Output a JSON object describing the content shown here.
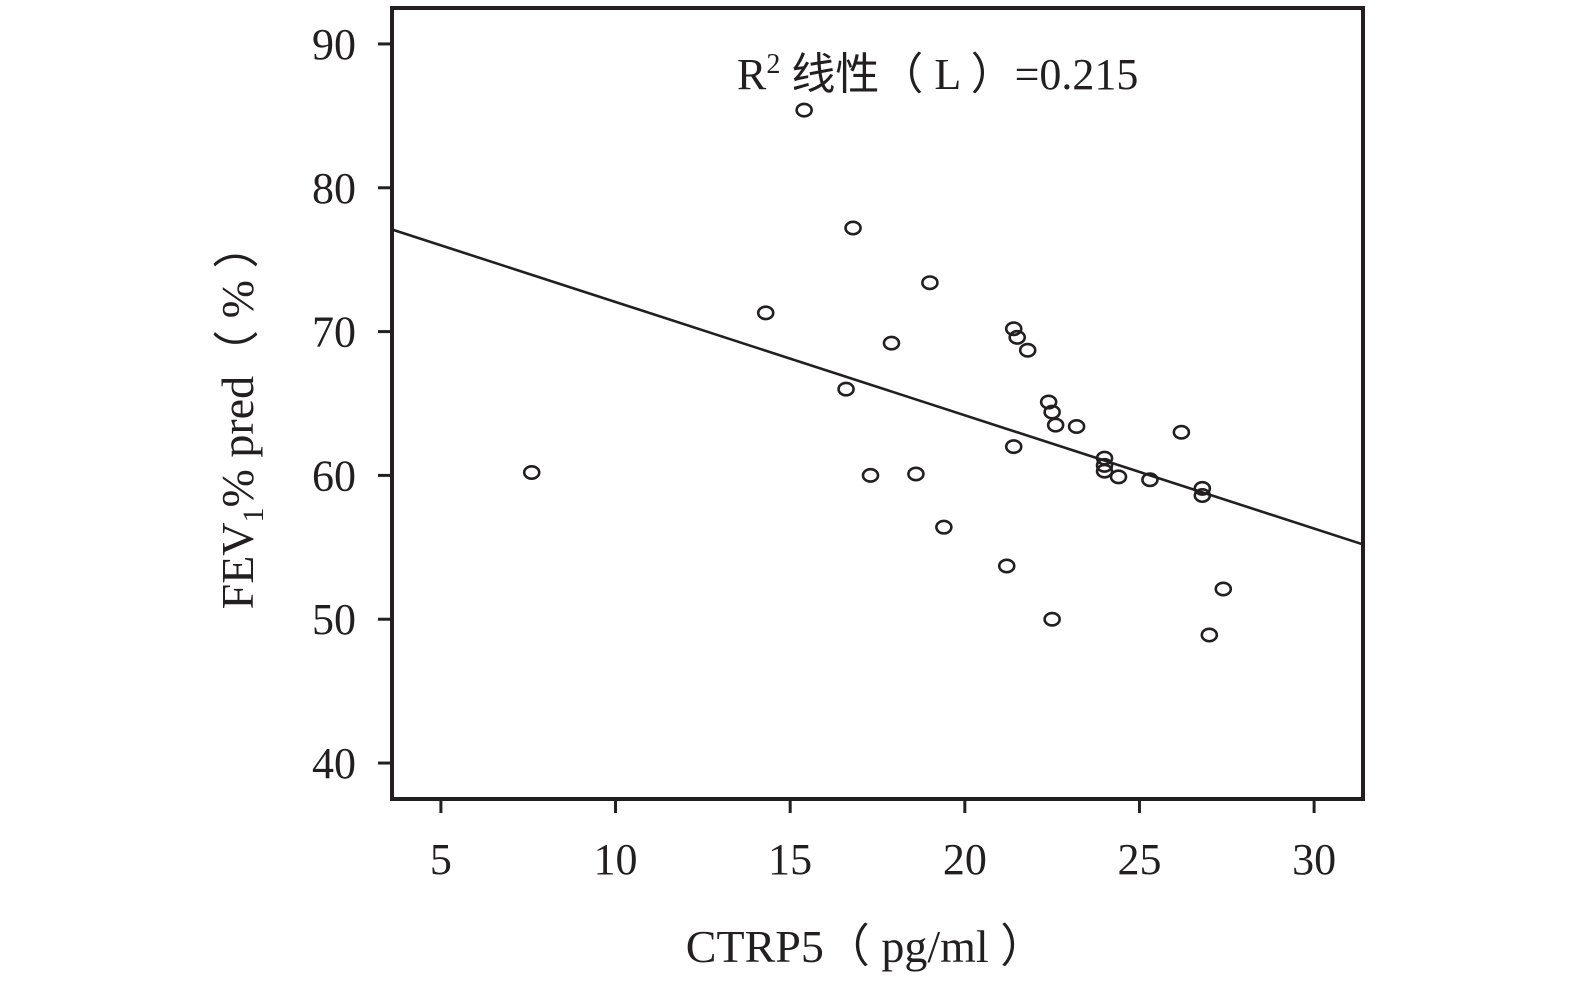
{
  "chart_data": {
    "type": "scatter",
    "title": "",
    "annotation": {
      "prefix": "R",
      "sup": "2",
      "text": " 线性（ L ）=0.215"
    },
    "xlabel": "CTRP5（ pg/ml ）",
    "ylabel": {
      "prefix": "FEV",
      "sub": "1",
      "text": "% pred（ % ）"
    },
    "xlim": [
      3.6,
      31.4
    ],
    "ylim": [
      37.5,
      92.5
    ],
    "xticks": [
      5,
      10,
      15,
      20,
      25,
      30
    ],
    "yticks": [
      40,
      50,
      60,
      70,
      80,
      90
    ],
    "grid": false,
    "points": [
      {
        "x": 7.6,
        "y": 60.2
      },
      {
        "x": 14.3,
        "y": 71.3
      },
      {
        "x": 15.4,
        "y": 85.4
      },
      {
        "x": 16.6,
        "y": 66.0
      },
      {
        "x": 16.8,
        "y": 77.2
      },
      {
        "x": 17.3,
        "y": 60.0
      },
      {
        "x": 17.9,
        "y": 69.2
      },
      {
        "x": 18.6,
        "y": 60.1
      },
      {
        "x": 19.0,
        "y": 73.4
      },
      {
        "x": 19.4,
        "y": 56.4
      },
      {
        "x": 21.2,
        "y": 53.7
      },
      {
        "x": 21.4,
        "y": 70.2
      },
      {
        "x": 21.5,
        "y": 69.6
      },
      {
        "x": 21.4,
        "y": 62.0
      },
      {
        "x": 21.8,
        "y": 68.7
      },
      {
        "x": 22.4,
        "y": 65.1
      },
      {
        "x": 22.5,
        "y": 64.4
      },
      {
        "x": 22.6,
        "y": 63.5
      },
      {
        "x": 22.5,
        "y": 50.0
      },
      {
        "x": 23.2,
        "y": 63.4
      },
      {
        "x": 24.0,
        "y": 61.2
      },
      {
        "x": 24.0,
        "y": 60.7
      },
      {
        "x": 24.0,
        "y": 60.3
      },
      {
        "x": 24.4,
        "y": 59.9
      },
      {
        "x": 25.3,
        "y": 59.7
      },
      {
        "x": 26.2,
        "y": 63.0
      },
      {
        "x": 26.8,
        "y": 59.1
      },
      {
        "x": 26.8,
        "y": 58.6
      },
      {
        "x": 27.0,
        "y": 48.9
      },
      {
        "x": 27.4,
        "y": 52.1
      }
    ],
    "fit_line": {
      "x": [
        3.6,
        31.4
      ],
      "y": [
        77.1,
        55.2
      ]
    },
    "colors": {
      "ink": "#231f20",
      "background": "#ffffff"
    }
  }
}
